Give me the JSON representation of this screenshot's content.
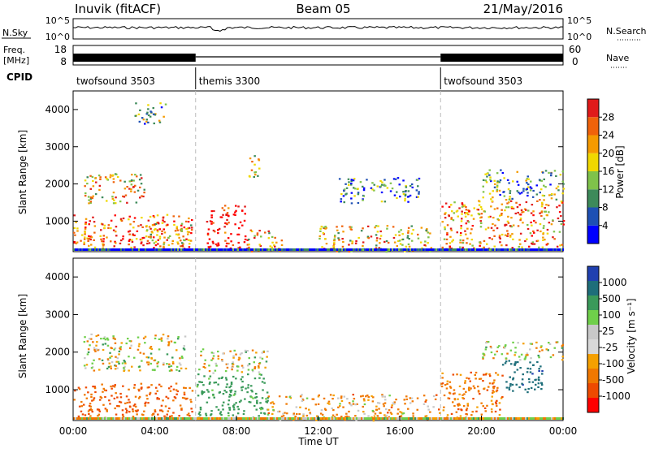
{
  "header": {
    "station": "Inuvik (fitACF)",
    "beam": "Beam 05",
    "date": "21/May/2016"
  },
  "top_panels": {
    "nsky_label": "N.Sky",
    "nsky_ticks": [
      "10^5",
      "10^0"
    ],
    "nsearch_label": "N.Search",
    "nsearch_ticks": [
      "10^5",
      "10^0"
    ],
    "freq_label_line1": "Freq.",
    "freq_label_line2": "[MHz]",
    "freq_ticks": [
      "18",
      "8"
    ],
    "nave_label": "Nave",
    "nave_ticks": [
      "60",
      "0"
    ],
    "cpid_label": "CPID",
    "cpid_segments": [
      {
        "label": "twofsound 3503",
        "start_hour": 0,
        "end_hour": 6
      },
      {
        "label": "themis 3300",
        "start_hour": 6,
        "end_hour": 18
      },
      {
        "label": "twofsound 3503",
        "start_hour": 18,
        "end_hour": 24
      }
    ]
  },
  "colors": {
    "power_scale": [
      "#0000ff",
      "#1e50b4",
      "#3d8a5a",
      "#7fc24a",
      "#f0d800",
      "#f59a00",
      "#f0620a",
      "#e01a1a",
      "#ff0000"
    ],
    "velocity_scale": [
      "#2040b0",
      "#1e6e7a",
      "#3a9a5a",
      "#6fcf4a",
      "#c8c8c8",
      "#d8d8d8",
      "#f5a000",
      "#f07800",
      "#ee4a00",
      "#ff0000"
    ]
  },
  "chart_data": [
    {
      "type": "heatmap",
      "quantity": "power",
      "ylabel": "Slant Range [km]",
      "yticks": [
        1000,
        2000,
        3000,
        4000
      ],
      "ylim": [
        180,
        4500
      ],
      "xlim": [
        0,
        24
      ],
      "colorbar_label": "Power [dB]",
      "colorbar_ticks": [
        "4",
        "8",
        "12",
        "16",
        "20",
        "24",
        "28"
      ],
      "regions": [
        {
          "t0": 0.0,
          "t1": 5.8,
          "r0": 250,
          "r1": 1200,
          "level": 0.75
        },
        {
          "t0": 0.5,
          "t1": 3.5,
          "r0": 1500,
          "r1": 2300,
          "level": 0.55
        },
        {
          "t0": 3.5,
          "t1": 5.8,
          "r0": 400,
          "r1": 1000,
          "level": 0.6
        },
        {
          "t0": 3.0,
          "t1": 4.5,
          "r0": 3600,
          "r1": 4200,
          "level": 0.35
        },
        {
          "t0": 6.5,
          "t1": 8.5,
          "r0": 250,
          "r1": 1450,
          "level": 0.95
        },
        {
          "t0": 8.5,
          "t1": 10.2,
          "r0": 200,
          "r1": 800,
          "level": 0.55
        },
        {
          "t0": 8.5,
          "t1": 9.2,
          "r0": 2200,
          "r1": 2800,
          "level": 0.5
        },
        {
          "t0": 12.0,
          "t1": 17.5,
          "r0": 200,
          "r1": 900,
          "level": 0.55
        },
        {
          "t0": 13.0,
          "t1": 17.0,
          "r0": 1500,
          "r1": 2200,
          "level": 0.25
        },
        {
          "t0": 18.0,
          "t1": 24.0,
          "r0": 250,
          "r1": 1600,
          "level": 0.65
        },
        {
          "t0": 20.0,
          "t1": 24.0,
          "r0": 1600,
          "r1": 2400,
          "level": 0.3
        }
      ]
    },
    {
      "type": "heatmap",
      "quantity": "velocity",
      "ylabel": "Slant Range [km]",
      "xlabel": "Time UT",
      "yticks": [
        1000,
        2000,
        3000,
        4000
      ],
      "ylim": [
        180,
        4500
      ],
      "xlim": [
        0,
        24
      ],
      "xticks": [
        "00:00",
        "04:00",
        "08:00",
        "12:00",
        "16:00",
        "20:00",
        "00:00"
      ],
      "colorbar_label": "Velocity [m s⁻¹]",
      "colorbar_ticks": [
        "-1000",
        "-500",
        "-100",
        "-25",
        "25",
        "100",
        "500",
        "1000"
      ],
      "regions": [
        {
          "t0": 0.0,
          "t1": 5.8,
          "r0": 250,
          "r1": 1200,
          "level": -200
        },
        {
          "t0": 0.5,
          "t1": 5.5,
          "r0": 1500,
          "r1": 2500,
          "level": 0
        },
        {
          "t0": 6.0,
          "t1": 9.5,
          "r0": 200,
          "r1": 1450,
          "level": 200
        },
        {
          "t0": 6.0,
          "t1": 9.5,
          "r0": 1450,
          "r1": 2100,
          "level": 0
        },
        {
          "t0": 9.5,
          "t1": 18.0,
          "r0": 200,
          "r1": 900,
          "level": -80
        },
        {
          "t0": 18.0,
          "t1": 21.0,
          "r0": 250,
          "r1": 1500,
          "level": -150
        },
        {
          "t0": 21.0,
          "t1": 23.0,
          "r0": 900,
          "r1": 1800,
          "level": 600
        },
        {
          "t0": 20.0,
          "t1": 24.0,
          "r0": 1800,
          "r1": 2300,
          "level": 0
        }
      ]
    }
  ]
}
